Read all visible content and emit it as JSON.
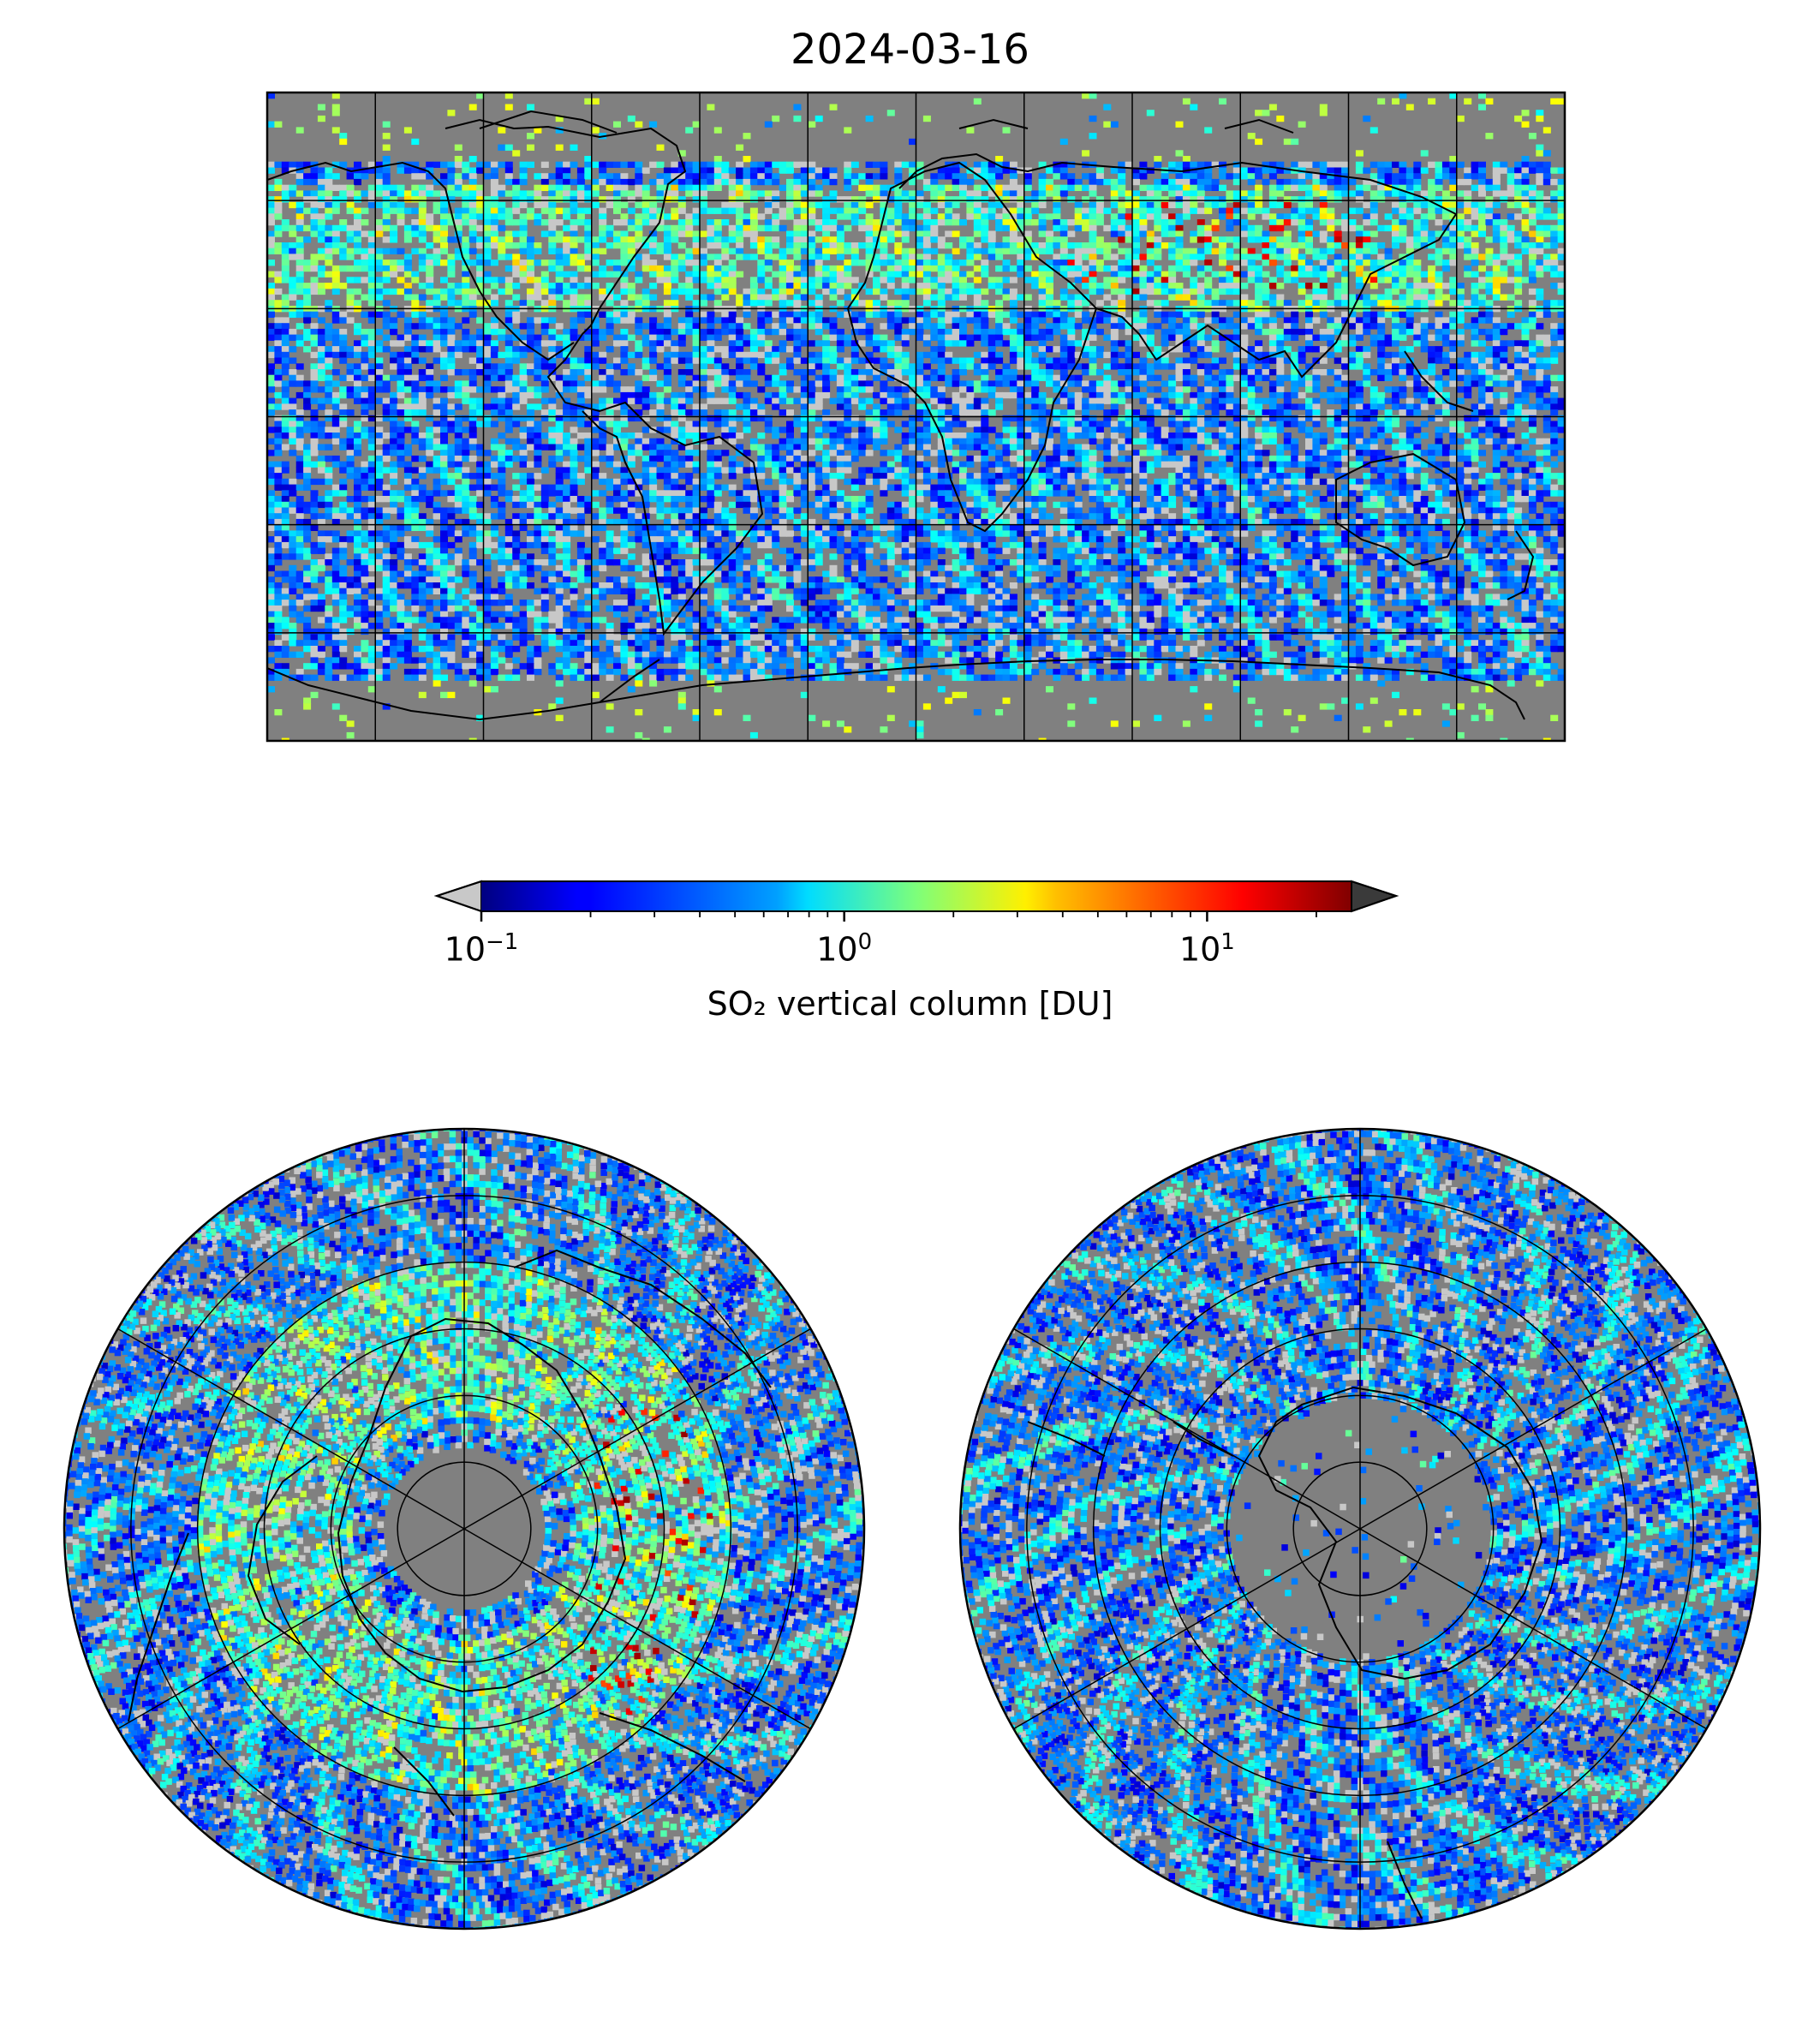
{
  "figure": {
    "title": "2024-03-16"
  },
  "colorbar": {
    "label": "SO₂ vertical column [DU]",
    "colormap": "jet",
    "scale": "log",
    "range": [
      0.1,
      25
    ],
    "extend": "both",
    "under_color": "#c8c8c8",
    "over_color": "#3a3a3a",
    "ticks": [
      {
        "value": 0.1,
        "base": "10",
        "exp": "−1"
      },
      {
        "value": 1,
        "base": "10",
        "exp": "0"
      },
      {
        "value": 10,
        "base": "10",
        "exp": "1"
      }
    ]
  },
  "colors": {
    "no_data": "#808080",
    "below_range": "#c8c8c8",
    "coastline": "#000000",
    "gridline": "#000000"
  },
  "chart_data": [
    {
      "type": "heatmap",
      "panel": "global",
      "projection": "equirectangular",
      "title": "",
      "lon_range": [
        -180,
        180
      ],
      "lat_range": [
        -90,
        90
      ],
      "gridlines": {
        "lon_step": 30,
        "lat_step": 30
      },
      "coastlines": true,
      "notable_features": [
        {
          "region": "northern mid-latitude band (30N-60N)",
          "level": "elevated 1-10 DU streaks"
        },
        {
          "region": "Siberia / Eurasia near 50N",
          "level": "up to ~10-20 DU"
        },
        {
          "region": "Antarctica",
          "level": "mostly no data"
        }
      ]
    },
    {
      "type": "heatmap",
      "panel": "north-polar",
      "projection": "north polar stereographic",
      "title": "",
      "lat_rings": [
        30,
        45,
        60,
        75
      ],
      "meridian_step": 60,
      "notable_features": [
        {
          "region": "polar cap north of ~70N",
          "level": "no data"
        },
        {
          "region": "Siberia / Eurasia near 50N",
          "level": "up to ~10-20 DU"
        }
      ]
    },
    {
      "type": "heatmap",
      "panel": "south-polar",
      "projection": "south polar stereographic",
      "title": "",
      "lat_rings": [
        -30,
        -45,
        -60,
        -75
      ],
      "meridian_step": 60,
      "notable_features": [
        {
          "region": "Antarctica interior",
          "level": "mostly no data"
        }
      ]
    }
  ]
}
